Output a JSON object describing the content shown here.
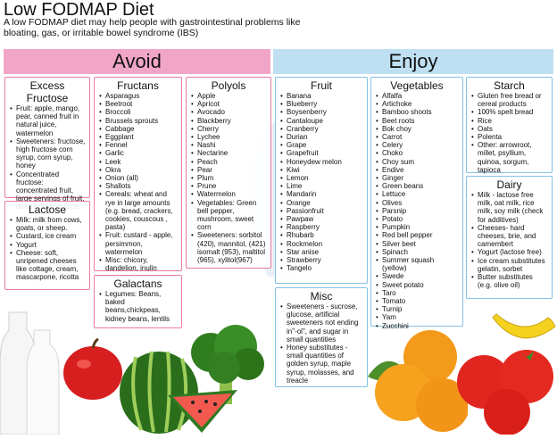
{
  "title": "Low FODMAP Diet",
  "subtitle": "A low FODMAP diet may help people with gastrointestinal problems like bloating, gas, or irritable bowel syndrome (IBS)",
  "headers": {
    "avoid": "Avoid",
    "enjoy": "Enjoy"
  },
  "avoid": {
    "excess_fructose": {
      "title": "Excess Fructose",
      "items": [
        "Fruit: apple, mango, pear, canned fruit in natural juice, watermelon",
        "Sweeteners: fructose, high fructose corn syrup, corn syrup, honey",
        "Concentrated fructose: concentrated fruit, large servings of fruit, dried fruit, fruit juice."
      ]
    },
    "lactose": {
      "title": "Lactose",
      "items": [
        "Milk: milk from cows, goats, or sheep.",
        "Custard, ice cream",
        "Yogurt",
        "Cheese: soft, unripened cheeses like cottage, cream, mascarpone, ricotta"
      ]
    },
    "fructans": {
      "title": "Fructans",
      "items": [
        "Asparagus",
        "Beetroot",
        "Broccoli",
        "Brussels sprouts",
        "Cabbage",
        "Eggplant",
        "Fennel",
        "Garlic",
        "Leek",
        "Okra",
        "Onion (all)",
        "Shallots",
        "Cereals: wheat and rye in large amounts (e.g. bread, crackers, cookies, couscous , pasta)",
        "Fruit: custard - apple, persimmon, watermelon",
        "Misc: chicory, dandelion, inulin"
      ]
    },
    "galactans": {
      "title": "Galactans",
      "items": [
        "Legumes: Beans, baked beans,chickpeas, kidney beans, lentils"
      ]
    },
    "polyols": {
      "title": "Polyols",
      "items": [
        "Apple",
        "Apricot",
        "Avocado",
        "Blackberry",
        "Cherry",
        "Lychee",
        "Nashi",
        "Nectarine",
        "Peach",
        "Pear",
        "Plum",
        "Prune",
        "Watermelon",
        "Vegetables: Green bell pepper, mushroom, sweet corn",
        "Sweeteners: sorbitol (420), mannitol, (421) isomalt (953), maltitol (965), xylitol(967)"
      ]
    }
  },
  "enjoy": {
    "fruit": {
      "title": "Fruit",
      "items": [
        "Banana",
        "Blueberry",
        "Boysenberry",
        "Cantaloupe",
        "Cranberry",
        "Durian",
        "Grape",
        "Grapefruit",
        "Honeydew melon",
        "Kiwi",
        "Lemon",
        "Lime",
        "Mandarin",
        "Orange",
        "Passionfruit",
        "Pawpaw",
        "Raspberry",
        "Rhubarb",
        "Rockmelon",
        "Star anise",
        "Strawberry",
        "Tangelo"
      ]
    },
    "vegetables": {
      "title": "Vegetables",
      "items": [
        "Alfalfa",
        "Artichoke",
        "Bamboo shoots",
        "Beet roots",
        "Bok choy",
        "Carrot",
        "Celery",
        "Choko",
        "Choy sum",
        "Endive",
        "Ginger",
        "Green beans",
        "Lettuce",
        "Olives",
        "Parsnip",
        "Potato",
        "Pumpkin",
        "Red bell pepper",
        "Silver beet",
        "Spinach",
        "Summer squash (yellow)",
        "Swede",
        "Sweet potato",
        "Taro",
        "Tomato",
        "Turnip",
        "Yam",
        "Zucchini"
      ]
    },
    "misc": {
      "title": "Misc",
      "items": [
        "Sweeteners - sucrose, glucose, artificial sweeteners not ending in\"-ol\", and sugar in small quantities",
        "Honey substitutes - small quantities of golden syrup, maple syrup, molasses, and treacle"
      ]
    },
    "starch": {
      "title": "Starch",
      "items": [
        "Gluten free bread or cereal products",
        "100% spelt bread",
        "Rice",
        "Oats",
        "Polenta",
        "Other: arrowroot, millet, psyllium, quinoa, sorgum, tapioca"
      ]
    },
    "dairy": {
      "title": "Dairy",
      "items": [
        "Milk - lactose free milk, oat milk, rice milk, soy milk (check for additives)",
        "Cheeses- hard cheeses, brie, and camembert",
        "Yogurt (lactose free)",
        "Ice cream substitutes gelatin, sorbet",
        "Butter substitutes (e.g. olive oil)"
      ]
    }
  },
  "colors": {
    "avoid": "#f1a6c7",
    "enjoy": "#bfe0f3",
    "avoid_border": "#e87aa6",
    "enjoy_border": "#84c1e6"
  }
}
